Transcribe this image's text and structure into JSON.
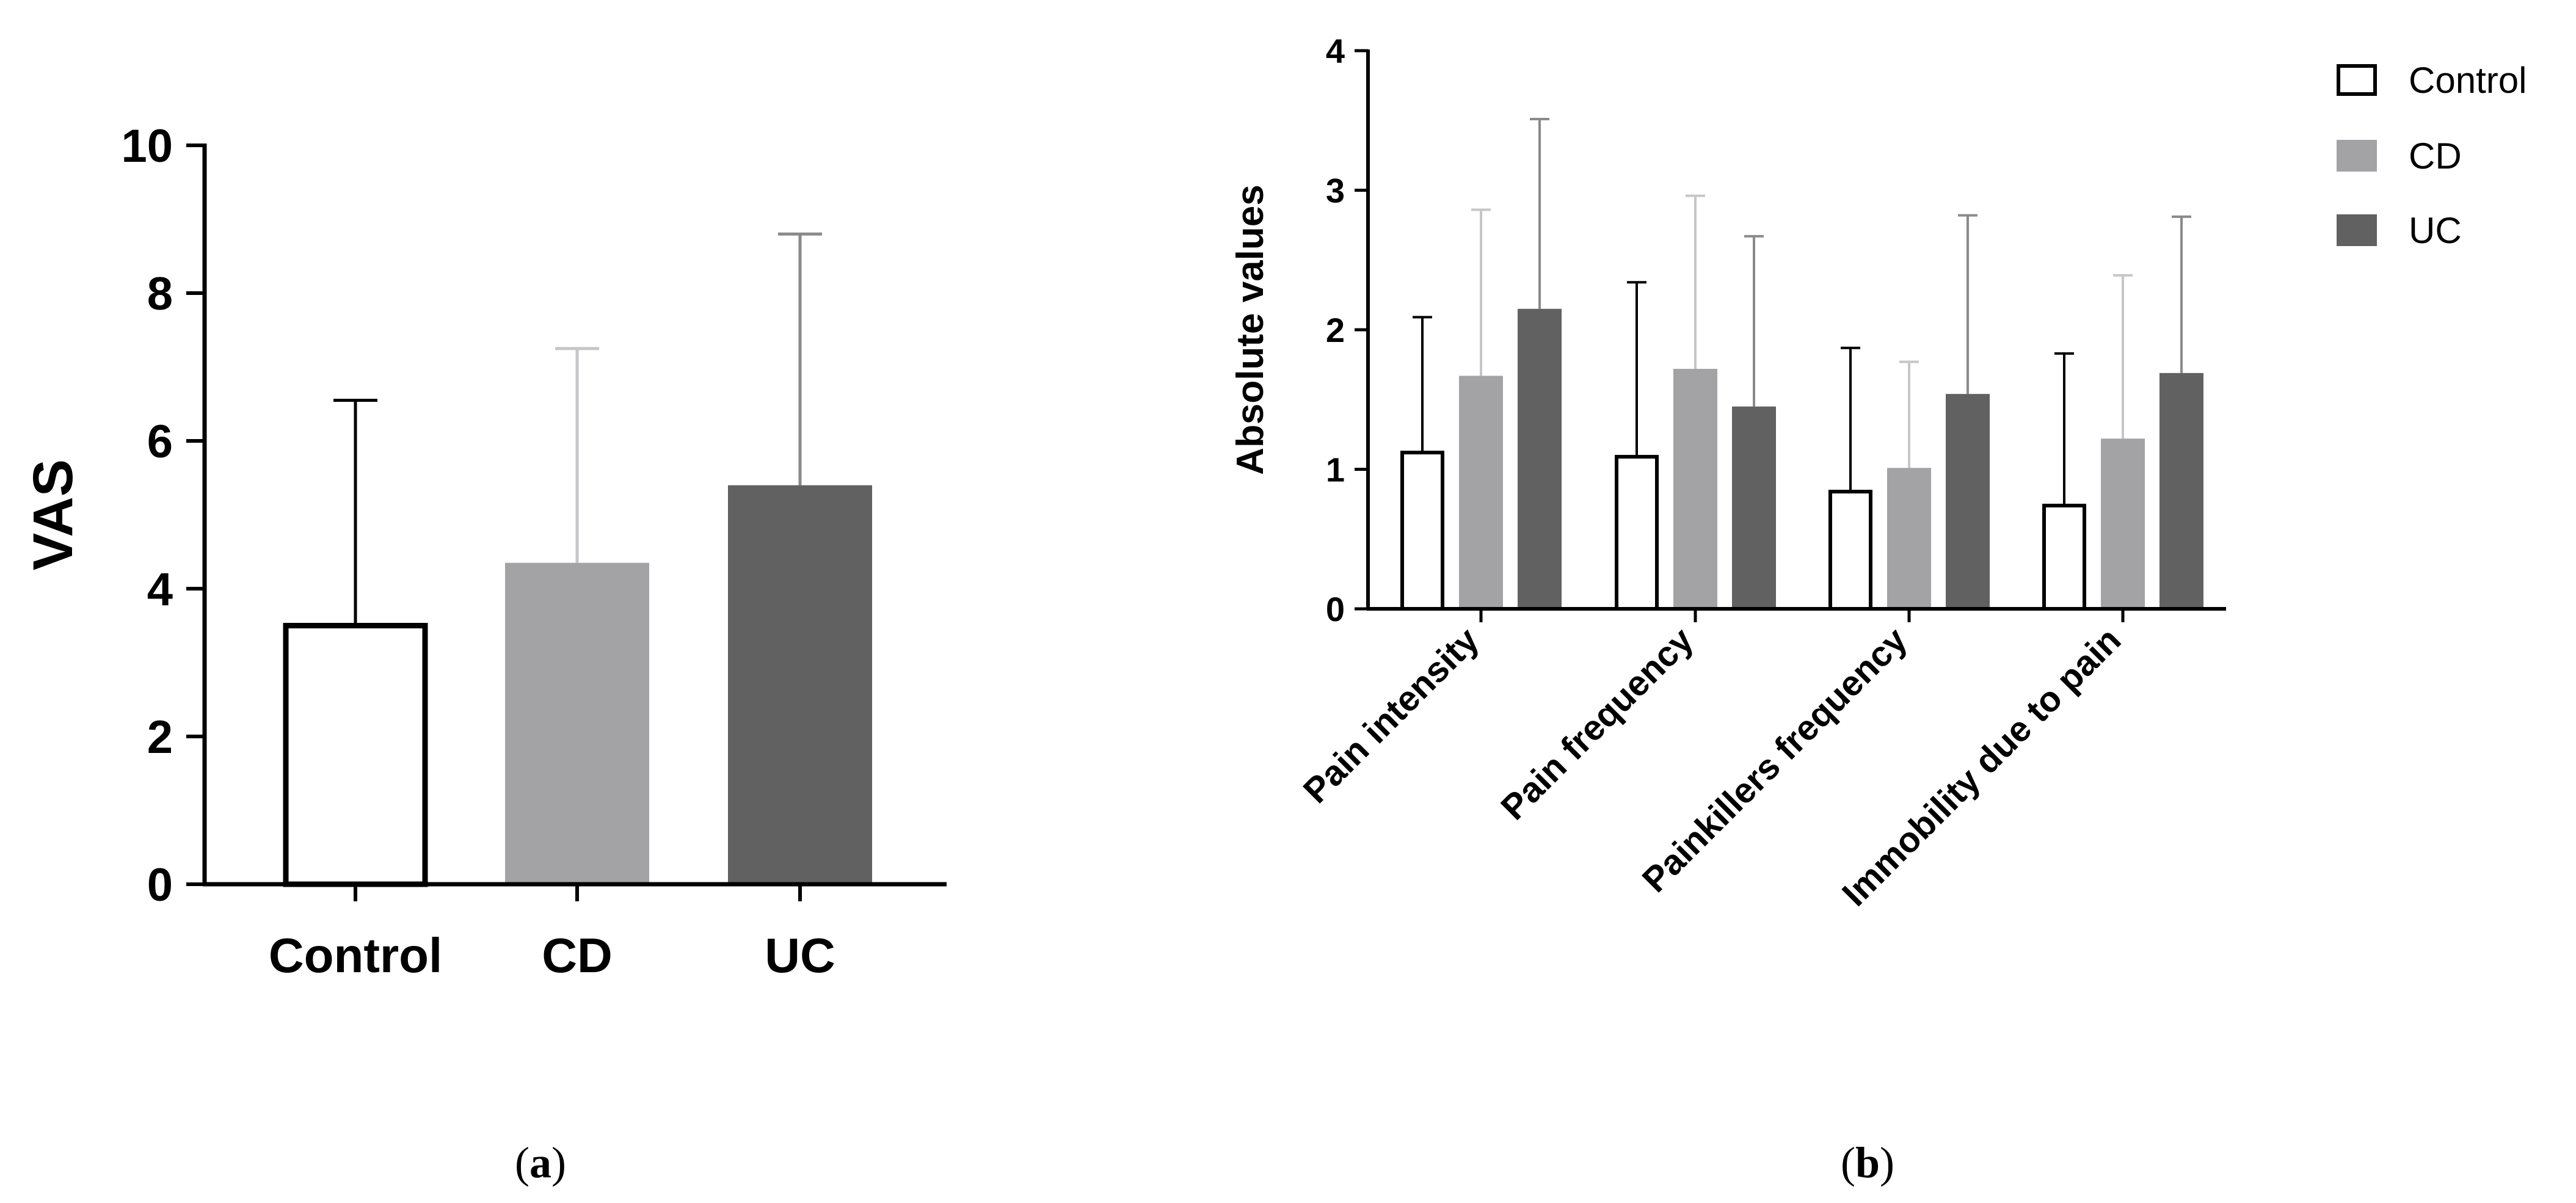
{
  "colors": {
    "control": "#ffffff",
    "cd": "#a3a3a6",
    "uc": "#616161",
    "axis": "#000000"
  },
  "captions": {
    "a": {
      "open": "(",
      "letter": "a",
      "close": ")"
    },
    "b": {
      "open": "(",
      "letter": "b",
      "close": ")"
    }
  },
  "chart_data": [
    {
      "id": "a",
      "type": "bar",
      "title": "",
      "xlabel": "",
      "ylabel": "VAS",
      "ylim": [
        0,
        10
      ],
      "yticks": [
        0,
        2,
        4,
        6,
        8,
        10
      ],
      "grid": false,
      "categories": [
        "Control",
        "CD",
        "UC"
      ],
      "series": [
        {
          "name": "VAS",
          "values": [
            3.5,
            4.35,
            5.4
          ],
          "errors": [
            3.05,
            2.9,
            3.4
          ]
        }
      ]
    },
    {
      "id": "b",
      "type": "bar",
      "title": "",
      "xlabel": "",
      "ylabel": "Absolute values",
      "ylim": [
        0,
        4
      ],
      "yticks": [
        0,
        1,
        2,
        3,
        4
      ],
      "grid": false,
      "legend_position": "top-right",
      "categories": [
        "Pain intensity",
        "Pain frequency",
        "Painkillers frequency",
        "Immobility due to pain"
      ],
      "series": [
        {
          "name": "Control",
          "values": [
            1.12,
            1.09,
            0.84,
            0.74
          ],
          "errors": [
            0.97,
            1.25,
            1.03,
            1.09
          ]
        },
        {
          "name": "CD",
          "values": [
            1.67,
            1.72,
            1.01,
            1.22
          ],
          "errors": [
            1.19,
            1.24,
            0.76,
            1.17
          ]
        },
        {
          "name": "UC",
          "values": [
            2.15,
            1.45,
            1.54,
            1.69
          ],
          "errors": [
            1.36,
            1.22,
            1.28,
            1.12
          ]
        }
      ]
    }
  ]
}
